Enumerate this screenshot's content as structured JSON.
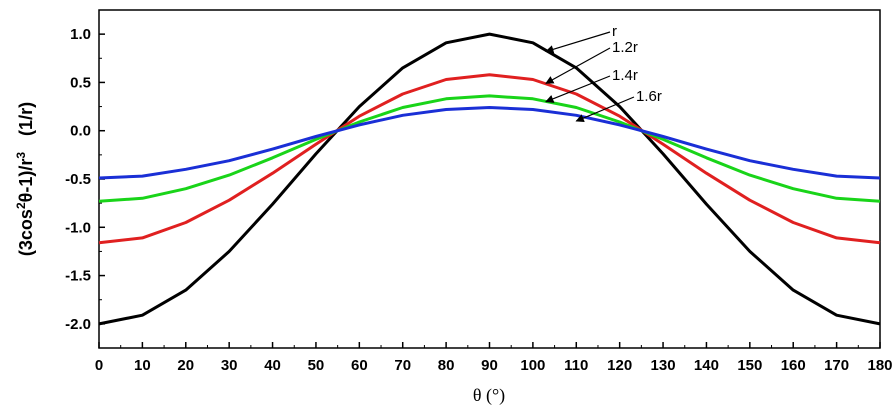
{
  "chart_data": {
    "type": "line",
    "title": "",
    "xlabel": "θ (°)",
    "ylabel": {
      "prefix": "(3cos",
      "sup1": "2",
      "middle": "θ-1)/r",
      "sup2": "3",
      "unit": "(1/r)"
    },
    "xlim": [
      0,
      180
    ],
    "ylim": [
      -2.25,
      1.25
    ],
    "xticks": [
      0,
      10,
      20,
      30,
      40,
      50,
      60,
      70,
      80,
      90,
      100,
      110,
      120,
      130,
      140,
      150,
      160,
      170,
      180
    ],
    "yticks": [
      "-2.0",
      "-1.5",
      "-1.0",
      "-0.5",
      "0.0",
      "0.5",
      "1.0"
    ],
    "grid": false,
    "x": [
      0,
      10,
      20,
      30,
      40,
      50,
      60,
      70,
      80,
      90,
      100,
      110,
      120,
      130,
      140,
      150,
      160,
      170,
      180
    ],
    "series": [
      {
        "name": "r",
        "color": "#000000",
        "values": [
          -2.0,
          -1.91,
          -1.65,
          -1.25,
          -0.76,
          -0.24,
          0.25,
          0.65,
          0.91,
          1.0,
          0.91,
          0.65,
          0.25,
          -0.24,
          -0.76,
          -1.25,
          -1.65,
          -1.91,
          -2.0
        ]
      },
      {
        "name": "1.2r",
        "color": "#e02020",
        "values": [
          -1.16,
          -1.11,
          -0.95,
          -0.72,
          -0.44,
          -0.14,
          0.15,
          0.38,
          0.53,
          0.58,
          0.53,
          0.38,
          0.15,
          -0.14,
          -0.44,
          -0.72,
          -0.95,
          -1.11,
          -1.16
        ]
      },
      {
        "name": "1.4r",
        "color": "#19d419",
        "values": [
          -0.73,
          -0.7,
          -0.6,
          -0.46,
          -0.28,
          -0.09,
          0.09,
          0.24,
          0.33,
          0.36,
          0.33,
          0.24,
          0.09,
          -0.09,
          -0.28,
          -0.46,
          -0.6,
          -0.7,
          -0.73
        ]
      },
      {
        "name": "1.6r",
        "color": "#1a2fd6",
        "values": [
          -0.49,
          -0.47,
          -0.4,
          -0.31,
          -0.19,
          -0.06,
          0.06,
          0.16,
          0.22,
          0.24,
          0.22,
          0.16,
          0.06,
          -0.06,
          -0.19,
          -0.31,
          -0.4,
          -0.47,
          -0.49
        ]
      }
    ],
    "annotations": [
      {
        "text": "r",
        "series": "r",
        "point_x": 103,
        "point_y": 0.82
      },
      {
        "text": "1.2r",
        "series": "1.2r",
        "point_x": 103,
        "point_y": 0.49
      },
      {
        "text": "1.4r",
        "series": "1.4r",
        "point_x": 103,
        "point_y": 0.3
      },
      {
        "text": "1.6r",
        "series": "1.6r",
        "point_x": 110,
        "point_y": 0.1
      }
    ]
  }
}
